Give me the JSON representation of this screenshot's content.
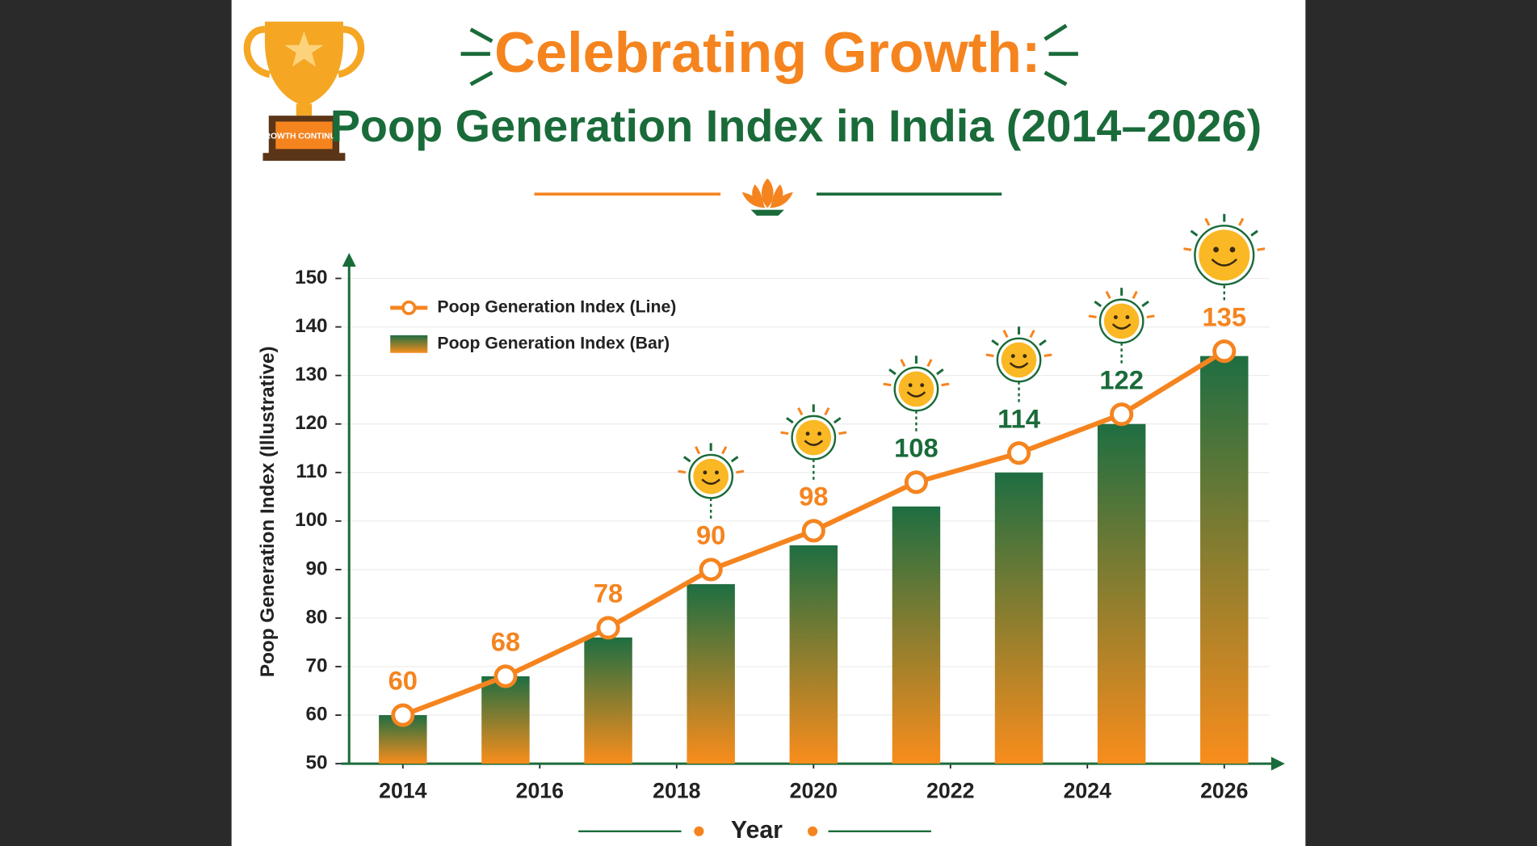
{
  "badge": "GROWTH CONTINUES!",
  "chart_data": {
    "type": "bar-line",
    "title": "Celebrating Growth:",
    "subtitle": "Poop Generation Index in India (2014–2026)",
    "x_label": "Year",
    "y_label": "Poop Generation Index (Illustrative)",
    "x": [
      2014,
      2015.5,
      2017,
      2018.5,
      2020,
      2021.5,
      2023,
      2024.5,
      2026
    ],
    "xlim": [
      2013.1,
      2026.8
    ],
    "xticks": [
      2014,
      2016,
      2018,
      2020,
      2022,
      2024,
      2026
    ],
    "ylim": [
      50,
      150
    ],
    "yticks": [
      50,
      60,
      70,
      80,
      90,
      100,
      110,
      120,
      130,
      140,
      150
    ],
    "grid": true,
    "legend": "upper left",
    "series": [
      {
        "name": "Poop Generation Index (Line)",
        "type": "line",
        "color": "#f5841f",
        "values": [
          60,
          68,
          78,
          90,
          98,
          108,
          114,
          122,
          135
        ]
      },
      {
        "name": "Poop Generation Index (Bar)",
        "type": "bar",
        "color": [
          "#1e6e42",
          "#f98d1c"
        ],
        "values": [
          60,
          68,
          76,
          87,
          95,
          103,
          110,
          120,
          134
        ]
      }
    ]
  }
}
